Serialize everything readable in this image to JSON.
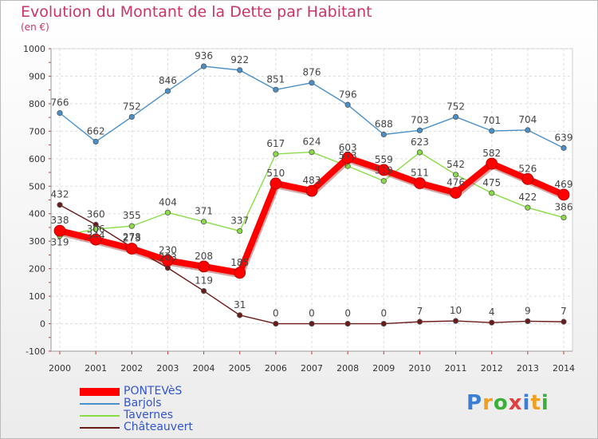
{
  "chart_data": {
    "type": "line",
    "title": "Evolution du Montant de la Dette par Habitant",
    "subtitle": "(en €)",
    "x": [
      "2000",
      "2001",
      "2002",
      "2003",
      "2004",
      "2005",
      "2006",
      "2007",
      "2008",
      "2009",
      "2010",
      "2011",
      "2012",
      "2013",
      "2014"
    ],
    "ylim": [
      -100,
      1000
    ],
    "yticks": [
      -100,
      0,
      100,
      200,
      300,
      400,
      500,
      600,
      700,
      800,
      900,
      1000
    ],
    "grid": true,
    "legend_position": "bottom-left",
    "series": [
      {
        "name": "PONTEVèS",
        "color": "#ff0000",
        "values": [
          338,
          306,
          273,
          230,
          208,
          185,
          510,
          483,
          603,
          559,
          511,
          476,
          582,
          526,
          469
        ]
      },
      {
        "name": "Barjols",
        "color": "#4a90c8",
        "values": [
          766,
          662,
          752,
          846,
          936,
          922,
          851,
          876,
          796,
          688,
          703,
          752,
          701,
          704,
          639
        ]
      },
      {
        "name": "Tavernes",
        "color": "#88dd44",
        "values": [
          319,
          344,
          355,
          404,
          371,
          337,
          617,
          624,
          573,
          519,
          623,
          542,
          475,
          422,
          386
        ]
      },
      {
        "name": "Châteauvert",
        "color": "#6b1a1a",
        "values": [
          432,
          360,
          278,
          203,
          119,
          31,
          0,
          0,
          0,
          0,
          7,
          10,
          4,
          9,
          7
        ]
      }
    ]
  },
  "logo": {
    "letters": [
      "P",
      "r",
      "o",
      "x",
      "i",
      "t",
      "i"
    ],
    "colors": [
      "#3a7fd5",
      "#f0a020",
      "#3ab03a",
      "#e04040",
      "#3a7fd5",
      "#f0a020",
      "#3ab03a"
    ]
  }
}
